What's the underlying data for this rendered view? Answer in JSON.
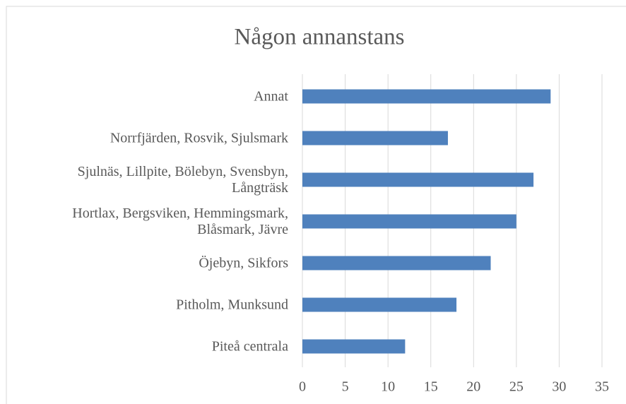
{
  "chart_data": {
    "type": "bar",
    "orientation": "horizontal",
    "title": "Någon annanstans",
    "categories": [
      "Annat",
      "Norrfjärden, Rosvik, Sjulsmark",
      "Sjulnäs, Lillpite, Bölebyn, Svensbyn, Långträsk",
      "Hortlax, Bergsviken, Hemmingsmark, Blåsmark, Jävre",
      "Öjebyn, Sikfors",
      "Pitholm, Munksund",
      "Piteå centrala"
    ],
    "values": [
      29,
      17,
      27,
      25,
      22,
      18,
      12
    ],
    "color": "#4f81bd",
    "xlim": [
      0,
      35
    ],
    "xticks": [
      0,
      5,
      10,
      15,
      20,
      25,
      30,
      35
    ],
    "grid": true
  }
}
